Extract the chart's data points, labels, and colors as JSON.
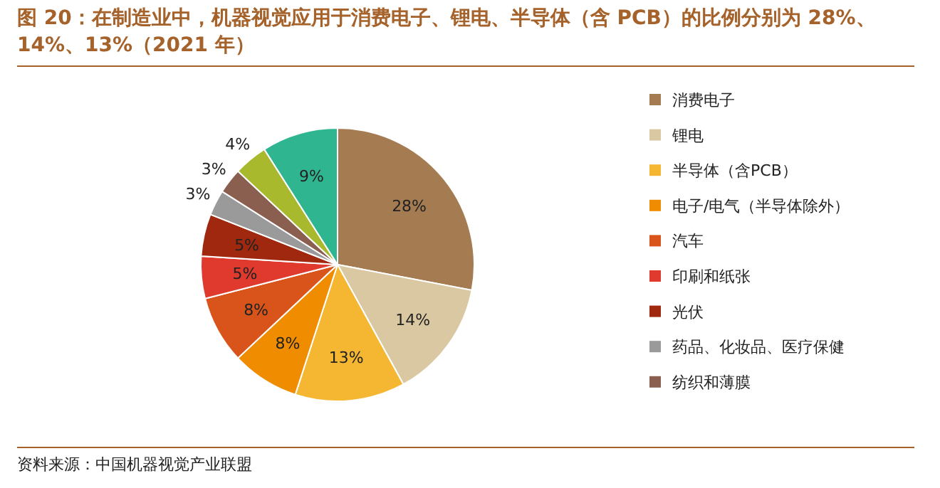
{
  "chart_data": {
    "type": "pie",
    "title": "图 20：在制造业中，机器视觉应用于消费电子、锂电、半导体（含 PCB）的比例分别为 28%、14%、13%（2021 年）",
    "categories": [
      "消费电子",
      "锂电",
      "半导体（含PCB）",
      "电子/电气（半导体除外）",
      "汽车",
      "印刷和纸张",
      "光伏",
      "药品、化妆品、医疗保健",
      "纺织和薄膜",
      null,
      null
    ],
    "values": [
      28,
      14,
      13,
      8,
      8,
      5,
      5,
      3,
      3,
      4,
      9
    ],
    "value_labels": [
      "28%",
      "14%",
      "13%",
      "8%",
      "8%",
      "5%",
      "5%",
      "3%",
      "3%",
      "4%",
      "9%"
    ],
    "colors": [
      "#a57c52",
      "#d9c8a2",
      "#f5b731",
      "#f08c00",
      "#d9541a",
      "#e03a2e",
      "#a0280f",
      "#9a9a9a",
      "#8b5f4f",
      "#a9b92d",
      "#2fb58f"
    ],
    "legend": "right",
    "annotations": [
      "资料来源：中国机器视觉产业联盟"
    ]
  }
}
